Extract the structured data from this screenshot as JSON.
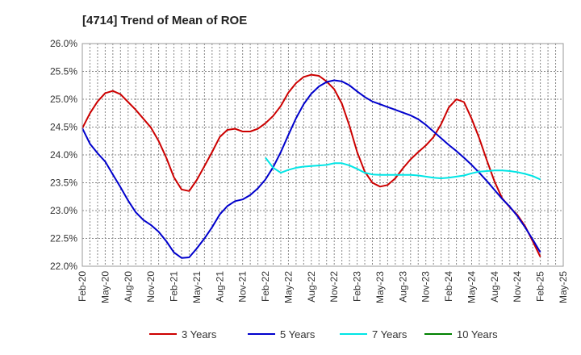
{
  "chart_data": {
    "type": "line",
    "title": "[4714]  Trend of Mean of ROE",
    "xlabel": "",
    "ylabel": "",
    "x_ticks": [
      "Feb-20",
      "May-20",
      "Aug-20",
      "Nov-20",
      "Feb-21",
      "May-21",
      "Aug-21",
      "Nov-21",
      "Feb-22",
      "May-22",
      "Aug-22",
      "Nov-22",
      "Feb-23",
      "May-23",
      "Aug-23",
      "Nov-23",
      "Feb-24",
      "May-24",
      "Aug-24",
      "Nov-24",
      "Feb-25",
      "May-25"
    ],
    "y_ticks": [
      "22.0%",
      "22.5%",
      "23.0%",
      "23.5%",
      "24.0%",
      "24.5%",
      "25.0%",
      "25.5%",
      "26.0%"
    ],
    "ylim": [
      22.0,
      26.0
    ],
    "x_range_months": [
      0,
      63
    ],
    "grid": true,
    "legend_position": "bottom",
    "series": [
      {
        "name": "3 Years",
        "color": "#cc0000",
        "points": [
          [
            0,
            24.48
          ],
          [
            1,
            24.75
          ],
          [
            2,
            24.96
          ],
          [
            3,
            25.11
          ],
          [
            4,
            25.15
          ],
          [
            5,
            25.09
          ],
          [
            6,
            24.95
          ],
          [
            7,
            24.81
          ],
          [
            8,
            24.65
          ],
          [
            9,
            24.49
          ],
          [
            10,
            24.25
          ],
          [
            11,
            23.95
          ],
          [
            12,
            23.6
          ],
          [
            13,
            23.38
          ],
          [
            14,
            23.35
          ],
          [
            15,
            23.55
          ],
          [
            16,
            23.8
          ],
          [
            17,
            24.05
          ],
          [
            18,
            24.32
          ],
          [
            19,
            24.45
          ],
          [
            20,
            24.47
          ],
          [
            21,
            24.42
          ],
          [
            22,
            24.42
          ],
          [
            23,
            24.47
          ],
          [
            24,
            24.57
          ],
          [
            25,
            24.7
          ],
          [
            26,
            24.88
          ],
          [
            27,
            25.12
          ],
          [
            28,
            25.29
          ],
          [
            29,
            25.4
          ],
          [
            30,
            25.44
          ],
          [
            31,
            25.42
          ],
          [
            32,
            25.32
          ],
          [
            33,
            25.18
          ],
          [
            34,
            24.92
          ],
          [
            35,
            24.52
          ],
          [
            36,
            24.05
          ],
          [
            37,
            23.7
          ],
          [
            38,
            23.5
          ],
          [
            39,
            23.43
          ],
          [
            40,
            23.46
          ],
          [
            41,
            23.58
          ],
          [
            42,
            23.76
          ],
          [
            43,
            23.92
          ],
          [
            44,
            24.05
          ],
          [
            45,
            24.17
          ],
          [
            46,
            24.32
          ],
          [
            47,
            24.55
          ],
          [
            48,
            24.85
          ],
          [
            49,
            25.0
          ],
          [
            50,
            24.95
          ],
          [
            51,
            24.65
          ],
          [
            52,
            24.3
          ],
          [
            53,
            23.9
          ],
          [
            54,
            23.52
          ],
          [
            55,
            23.22
          ],
          [
            56,
            23.06
          ],
          [
            57,
            22.92
          ],
          [
            58,
            22.72
          ],
          [
            59,
            22.45
          ],
          [
            60,
            22.17
          ]
        ]
      },
      {
        "name": "5 Years",
        "color": "#0000cc",
        "points": [
          [
            0,
            24.48
          ],
          [
            1,
            24.2
          ],
          [
            2,
            24.03
          ],
          [
            3,
            23.88
          ],
          [
            4,
            23.65
          ],
          [
            5,
            23.42
          ],
          [
            6,
            23.18
          ],
          [
            7,
            22.97
          ],
          [
            8,
            22.83
          ],
          [
            9,
            22.74
          ],
          [
            10,
            22.62
          ],
          [
            11,
            22.45
          ],
          [
            12,
            22.25
          ],
          [
            13,
            22.15
          ],
          [
            14,
            22.16
          ],
          [
            15,
            22.32
          ],
          [
            16,
            22.5
          ],
          [
            17,
            22.7
          ],
          [
            18,
            22.93
          ],
          [
            19,
            23.08
          ],
          [
            20,
            23.17
          ],
          [
            21,
            23.2
          ],
          [
            22,
            23.28
          ],
          [
            23,
            23.4
          ],
          [
            24,
            23.56
          ],
          [
            25,
            23.78
          ],
          [
            26,
            24.05
          ],
          [
            27,
            24.36
          ],
          [
            28,
            24.66
          ],
          [
            29,
            24.91
          ],
          [
            30,
            25.1
          ],
          [
            31,
            25.23
          ],
          [
            32,
            25.31
          ],
          [
            33,
            25.34
          ],
          [
            34,
            25.32
          ],
          [
            35,
            25.25
          ],
          [
            36,
            25.14
          ],
          [
            37,
            25.04
          ],
          [
            38,
            24.96
          ],
          [
            39,
            24.91
          ],
          [
            40,
            24.86
          ],
          [
            41,
            24.81
          ],
          [
            42,
            24.76
          ],
          [
            43,
            24.71
          ],
          [
            44,
            24.64
          ],
          [
            45,
            24.54
          ],
          [
            46,
            24.42
          ],
          [
            47,
            24.3
          ],
          [
            48,
            24.18
          ],
          [
            49,
            24.07
          ],
          [
            50,
            23.95
          ],
          [
            51,
            23.82
          ],
          [
            52,
            23.68
          ],
          [
            53,
            23.53
          ],
          [
            54,
            23.37
          ],
          [
            55,
            23.21
          ],
          [
            56,
            23.07
          ],
          [
            57,
            22.9
          ],
          [
            58,
            22.7
          ],
          [
            59,
            22.48
          ],
          [
            60,
            22.25
          ]
        ]
      },
      {
        "name": "7 Years",
        "color": "#00e5e5",
        "points": [
          [
            24,
            23.95
          ],
          [
            25,
            23.77
          ],
          [
            26,
            23.68
          ],
          [
            27,
            23.73
          ],
          [
            28,
            23.77
          ],
          [
            29,
            23.79
          ],
          [
            30,
            23.8
          ],
          [
            31,
            23.81
          ],
          [
            32,
            23.82
          ],
          [
            33,
            23.85
          ],
          [
            34,
            23.85
          ],
          [
            35,
            23.81
          ],
          [
            36,
            23.75
          ],
          [
            37,
            23.68
          ],
          [
            38,
            23.65
          ],
          [
            39,
            23.64
          ],
          [
            40,
            23.64
          ],
          [
            41,
            23.64
          ],
          [
            42,
            23.64
          ],
          [
            43,
            23.64
          ],
          [
            44,
            23.63
          ],
          [
            45,
            23.61
          ],
          [
            46,
            23.59
          ],
          [
            47,
            23.58
          ],
          [
            48,
            23.59
          ],
          [
            49,
            23.61
          ],
          [
            50,
            23.63
          ],
          [
            51,
            23.67
          ],
          [
            52,
            23.7
          ],
          [
            53,
            23.71
          ],
          [
            54,
            23.72
          ],
          [
            55,
            23.72
          ],
          [
            56,
            23.71
          ],
          [
            57,
            23.69
          ],
          [
            58,
            23.66
          ],
          [
            59,
            23.62
          ],
          [
            60,
            23.56
          ]
        ]
      },
      {
        "name": "10 Years",
        "color": "#008000",
        "points": []
      }
    ]
  }
}
